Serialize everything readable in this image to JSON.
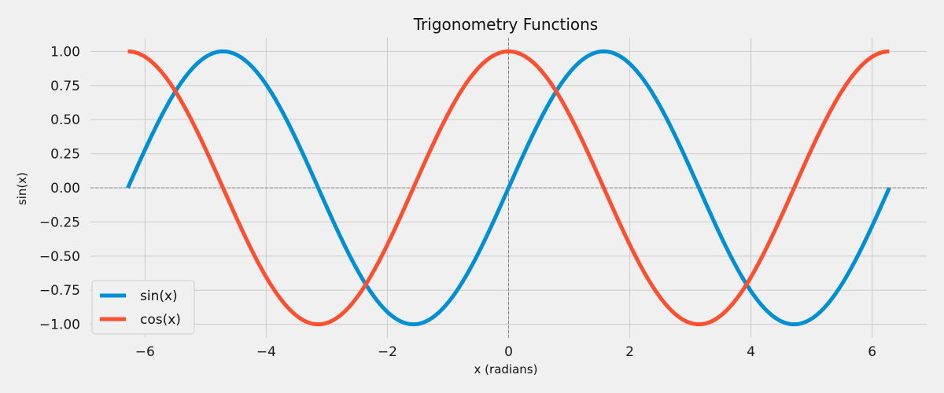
{
  "chart_data": {
    "type": "line",
    "title": "Trigonometry Functions",
    "xlabel": "x (radians)",
    "ylabel": "sin(x)",
    "xlim": [
      -6.9,
      6.9
    ],
    "ylim": [
      -1.1,
      1.1
    ],
    "x_ticks": [
      -6,
      -4,
      -2,
      0,
      2,
      4,
      6
    ],
    "x_tick_labels": [
      "−6",
      "−4",
      "−2",
      "0",
      "2",
      "4",
      "6"
    ],
    "y_ticks": [
      1.0,
      0.75,
      0.5,
      0.25,
      0.0,
      -0.25,
      -0.5,
      -0.75,
      -1.0
    ],
    "y_tick_labels": [
      "1.00",
      "0.75",
      "0.50",
      "0.25",
      "0.00",
      "−0.25",
      "−0.50",
      "−0.75",
      "−1.00"
    ],
    "grid": true,
    "legend_position": "lower-left",
    "x_range": [
      -6.283,
      6.283
    ],
    "series": [
      {
        "name": "sin(x)",
        "color": "#008fd5",
        "function": "sin",
        "x": [
          -6.283,
          -5.498,
          -4.712,
          -3.927,
          -3.142,
          -2.356,
          -1.571,
          -0.785,
          0.0,
          0.785,
          1.571,
          2.356,
          3.142,
          3.927,
          4.712,
          5.498,
          6.283
        ],
        "y": [
          0.0,
          0.707,
          1.0,
          0.707,
          0.0,
          -0.707,
          -1.0,
          -0.707,
          0.0,
          0.707,
          1.0,
          0.707,
          0.0,
          -0.707,
          -1.0,
          -0.707,
          0.0
        ]
      },
      {
        "name": "cos(x)",
        "color": "#fc4f30",
        "function": "cos",
        "x": [
          -6.283,
          -5.498,
          -4.712,
          -3.927,
          -3.142,
          -2.356,
          -1.571,
          -0.785,
          0.0,
          0.785,
          1.571,
          2.356,
          3.142,
          3.927,
          4.712,
          5.498,
          6.283
        ],
        "y": [
          1.0,
          0.707,
          0.0,
          -0.707,
          -1.0,
          -0.707,
          0.0,
          0.707,
          1.0,
          0.707,
          0.0,
          -0.707,
          -1.0,
          -0.707,
          0.0,
          0.707,
          1.0
        ]
      }
    ]
  }
}
